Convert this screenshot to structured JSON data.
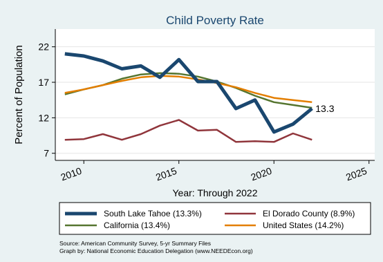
{
  "chart_data": {
    "type": "line",
    "title": "Child Poverty Rate",
    "xlabel": "Year: Through 2022",
    "ylabel": "Percent of Population",
    "xlim": [
      2008.5,
      2025.3
    ],
    "ylim": [
      6,
      24.5
    ],
    "x_ticks": [
      2010,
      2015,
      2020,
      2025
    ],
    "x_tick_labels": [
      "2010",
      "2015",
      "2020",
      "2025"
    ],
    "y_ticks": [
      7,
      12,
      17,
      22
    ],
    "y_tick_labels": [
      "7",
      "12",
      "17",
      "22"
    ],
    "grid": true,
    "legend_position": "bottom",
    "series": [
      {
        "name": "South Lake Tahoe (13.3%)",
        "color": "#1a476f",
        "x": [
          2009,
          2010,
          2011,
          2012,
          2013,
          2014,
          2015,
          2016,
          2017,
          2018,
          2019,
          2020,
          2021,
          2022
        ],
        "values": [
          21.0,
          20.7,
          20.0,
          18.9,
          19.3,
          17.7,
          20.2,
          17.1,
          17.1,
          13.3,
          14.5,
          10.0,
          11.1,
          13.3
        ],
        "end_label": "13.3"
      },
      {
        "name": "El Dorado County (8.9%)",
        "color": "#90353b",
        "x": [
          2009,
          2010,
          2011,
          2012,
          2013,
          2014,
          2015,
          2016,
          2017,
          2018,
          2019,
          2020,
          2021,
          2022
        ],
        "values": [
          8.9,
          9.0,
          9.7,
          8.9,
          9.7,
          10.9,
          11.7,
          10.2,
          10.3,
          8.6,
          8.7,
          8.6,
          9.8,
          8.9
        ]
      },
      {
        "name": "California (13.4%)",
        "color": "#55752f",
        "x": [
          2009,
          2010,
          2011,
          2012,
          2013,
          2014,
          2015,
          2016,
          2017,
          2018,
          2019,
          2020,
          2021,
          2022
        ],
        "values": [
          15.3,
          16.0,
          16.6,
          17.5,
          18.1,
          18.3,
          18.2,
          17.8,
          17.1,
          16.2,
          15.1,
          14.2,
          13.8,
          13.4
        ]
      },
      {
        "name": "United States (14.2%)",
        "color": "#e37e00",
        "x": [
          2009,
          2010,
          2011,
          2012,
          2013,
          2014,
          2015,
          2016,
          2017,
          2018,
          2019,
          2020,
          2021,
          2022
        ],
        "values": [
          15.5,
          16.0,
          16.6,
          17.2,
          17.7,
          17.9,
          17.8,
          17.4,
          16.9,
          16.3,
          15.5,
          14.8,
          14.5,
          14.2
        ]
      }
    ],
    "source_note": "Source: American Community Survey, 5-yr Summary Files",
    "credit_note": "Graph by: National Economic Education Delegation (www.NEEDEcon.org)"
  }
}
